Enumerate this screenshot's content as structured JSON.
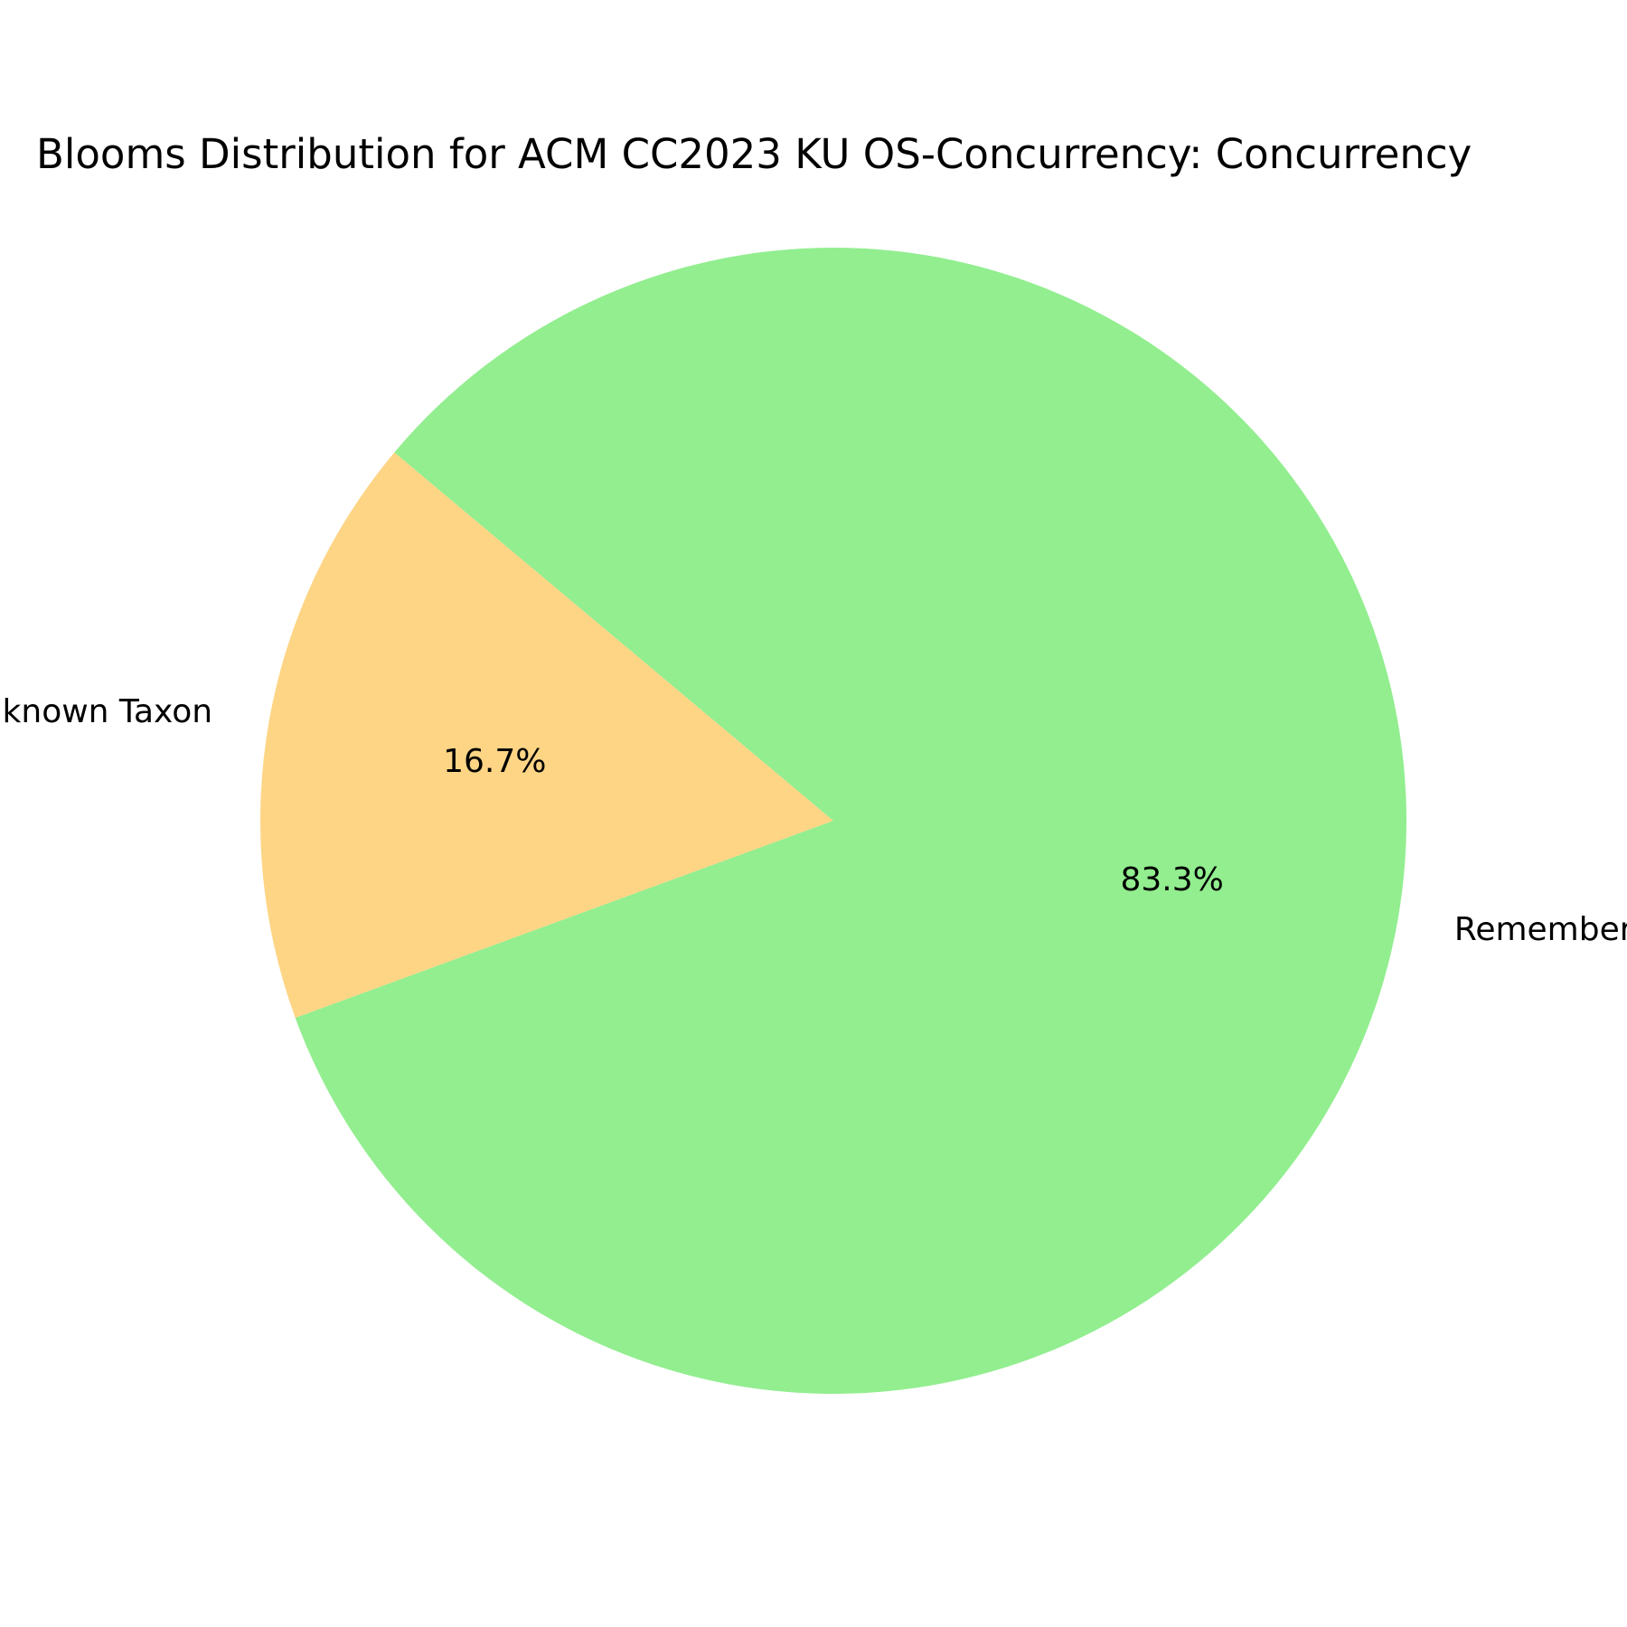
{
  "chart_data": {
    "type": "pie",
    "title": "Blooms Distribution for ACM CC2023 KU OS-Concurrency: Concurrency",
    "slices": [
      {
        "label": "Unknown Taxon",
        "value": 16.7,
        "pct_label": "16.7%",
        "color": "#fdd585"
      },
      {
        "label": "Remember Taxon",
        "value": 83.3,
        "pct_label": "83.3%",
        "color": "#92ee8f"
      }
    ],
    "legend": "none"
  }
}
